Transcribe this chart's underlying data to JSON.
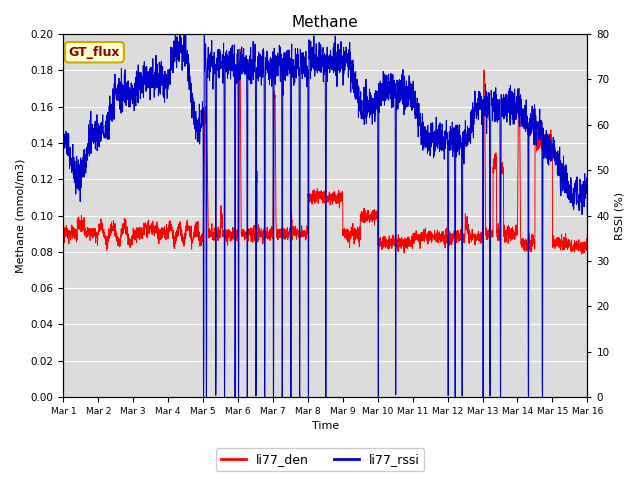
{
  "title": "Methane",
  "xlabel": "Time",
  "ylabel_left": "Methane (mmol/m3)",
  "ylabel_right": "RSSI (%)",
  "ylim_left": [
    0.0,
    0.2
  ],
  "ylim_right": [
    0,
    80
  ],
  "background_color": "#dcdcdc",
  "fig_background": "#ffffff",
  "grid_color": "#ffffff",
  "legend_labels": [
    "li77_den",
    "li77_rssi"
  ],
  "legend_colors": [
    "#ff0000",
    "#0000cc"
  ],
  "gt_flux_label": "GT_flux",
  "x_tick_labels": [
    "Mar 1",
    "Mar 2",
    "Mar 3",
    "Mar 4",
    "Mar 5",
    "Mar 6",
    "Mar 7",
    "Mar 8",
    "Mar 9",
    "Mar 10",
    "Mar 11",
    "Mar 12",
    "Mar 13",
    "Mar 14",
    "Mar 15",
    "Mar 16"
  ],
  "n_days": 15,
  "n_points": 3000
}
